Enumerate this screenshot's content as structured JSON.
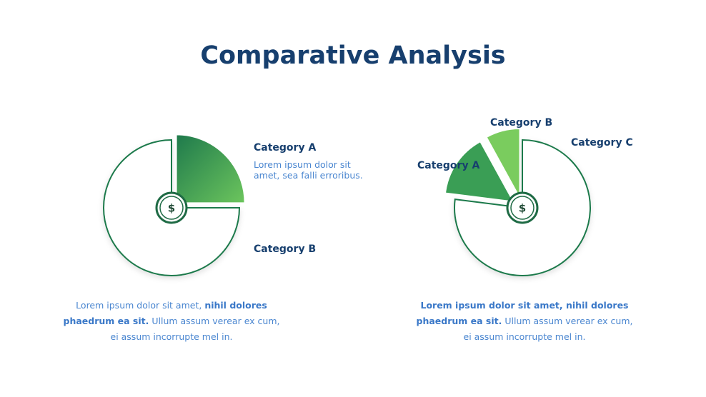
{
  "title": "Comparative Analysis",
  "chart_data": [
    {
      "type": "pie",
      "categories": [
        "Category A",
        "Category B"
      ],
      "values": [
        25,
        75
      ],
      "colors": [
        "#3fa556",
        "#ffffff"
      ],
      "annotation": "Lorem ipsum dolor sit amet, sea falli erroribus."
    },
    {
      "type": "pie",
      "categories": [
        "Category C",
        "Category A",
        "Category B"
      ],
      "values": [
        77,
        15,
        8
      ],
      "colors": [
        "#ffffff",
        "#3a9e55",
        "#7acc5e"
      ]
    }
  ],
  "captions": [
    [
      {
        "text": "Lorem ipsum dolor sit amet, ",
        "bold": false
      },
      {
        "text": "nihil dolores phaedrum ea sit.",
        "bold": true
      },
      {
        "text": " Ullum assum verear ex cum, ei assum incorrupte mel in.",
        "bold": false
      }
    ],
    [
      {
        "text": "Lorem ipsum dolor sit amet, nihil dolores phaedrum ea sit.",
        "bold": true
      },
      {
        "text": " Ullum assum verear ex cum, ei assum incorrupte mel in.",
        "bold": false
      }
    ]
  ]
}
